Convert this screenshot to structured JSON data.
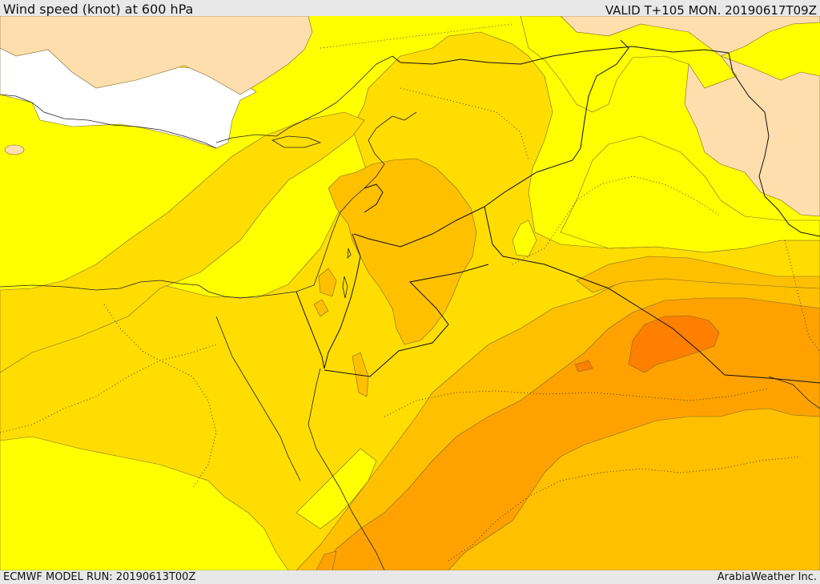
{
  "header": {
    "title": "Wind speed (knot) at 600 hPa",
    "valid_time": "VALID T+105 MON. 20190617T09Z"
  },
  "footer": {
    "model_run": "ECMWF MODEL RUN: 20190613T00Z",
    "credit": "ArabiaWeather Inc."
  },
  "colors": {
    "band_0": "#ffffff",
    "band_1": "#ffdead",
    "band_2": "#ffff00",
    "band_3": "#ffdd00",
    "band_4": "#ffc000",
    "band_5": "#ffa200",
    "band_6": "#ff7f00",
    "frame": "#e8e8e8"
  }
}
